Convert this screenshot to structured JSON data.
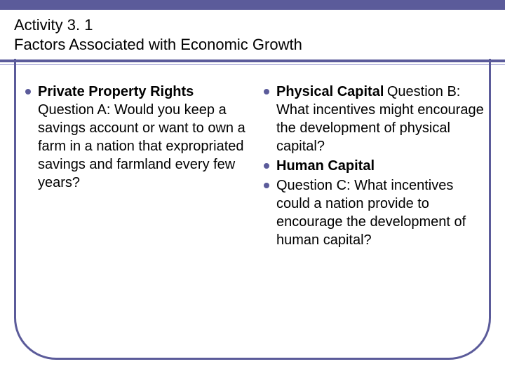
{
  "colors": {
    "accent": "#5b5b9a",
    "accent_light": "#9a9ad0",
    "text": "#000000",
    "background": "#ffffff"
  },
  "typography": {
    "family": "Arial",
    "title_size_pt": 22,
    "body_size_pt": 20
  },
  "title": {
    "line1": "Activity 3. 1",
    "line2": "Factors Associated with Economic Growth"
  },
  "columns": {
    "left": [
      {
        "heading": "Private Property Rights",
        "body": "Question A: Would you keep a savings account or want to own a farm in a nation that expropriated savings and farmland every few years?"
      }
    ],
    "right": [
      {
        "heading": "Physical Capital",
        "body": "Question B: What incentives might encourage the development of physical capital?"
      },
      {
        "heading": "Human Capital",
        "body": ""
      },
      {
        "heading": "",
        "body": "Question C: What incentives could a nation provide to encourage the development of human capital?"
      }
    ]
  }
}
